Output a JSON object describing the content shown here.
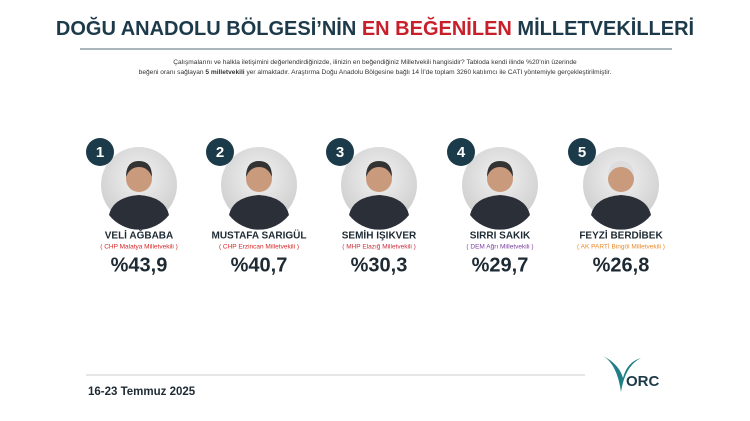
{
  "header": {
    "title": [
      "DOĞU ANADOLU BÖLGESİ’NİN ",
      "EN BEĞENİLEN",
      " MİLLETVEKİLLERİ"
    ],
    "description": [
      "Çalışmalarını ve halkla iletişimini değerlendirdiğinizde, ilinizin en beğendiğiniz Milletvekili hangisidir? Tabloda kendi ilinde %20’nin üzerinde",
      "beğeni oranı sağlayan ",
      "5 milletvekili",
      " yer almaktadır. Araştırma Doğu Anadolu Bölgesine bağlı 14 İl’de toplam 3260 katılımcı ile CATI yöntemiyle gerçekleştirilmiştir."
    ]
  },
  "members": [
    {
      "rank": "1",
      "name": "VELİ AĞBABA",
      "party": "( CHP Malatya Milletvekili )",
      "party_color": "#d62828",
      "score": "%43,9"
    },
    {
      "rank": "2",
      "name": "MUSTAFA SARIGÜL",
      "party": "( CHP Erzincan Milletvekili )",
      "party_color": "#d62828",
      "score": "%40,7"
    },
    {
      "rank": "3",
      "name": "SEMİH IŞIKVER",
      "party": "( MHP Elazığ Milletvekili )",
      "party_color": "#c8303a",
      "score": "%30,3"
    },
    {
      "rank": "4",
      "name": "SIRRI SAKIK",
      "party": "( DEM Ağrı Milletvekili )",
      "party_color": "#7b3fa0",
      "score": "%29,7"
    },
    {
      "rank": "5",
      "name": "FEYZİ BERDİBEK",
      "party": "( AK PARTİ Bingöl Milletvekili )",
      "party_color": "#e8892b",
      "score": "%26,8"
    }
  ],
  "footer": {
    "date": "16-23 Temmuz 2025",
    "logo": "ORC"
  }
}
